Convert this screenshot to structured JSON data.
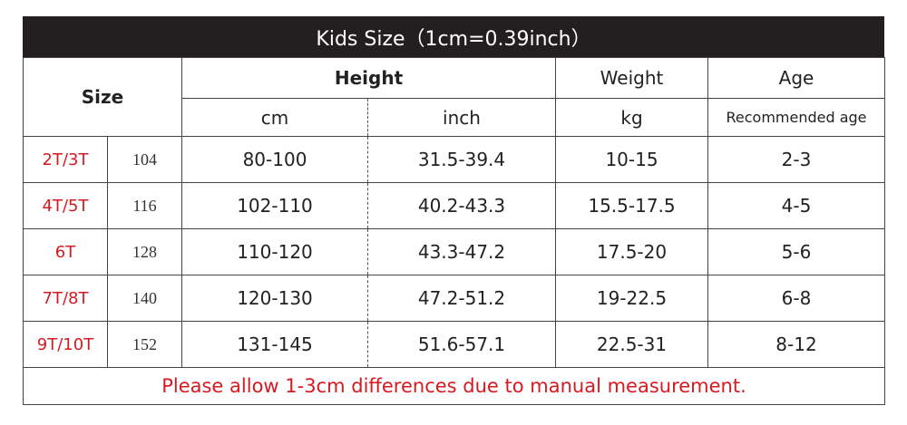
{
  "header": {
    "title": "Kids  Size（1cm=0.39inch）"
  },
  "table": {
    "columns": {
      "size": "Size",
      "height": "Height",
      "weight": "Weight",
      "age": "Age",
      "cm": "cm",
      "inch": "inch",
      "kg": "kg",
      "recommended": "Recommended age"
    },
    "rows": [
      [
        "2T/3T",
        "104",
        "80-100",
        "31.5-39.4",
        "10-15",
        "2-3"
      ],
      [
        "4T/5T",
        "116",
        "102-110",
        "40.2-43.3",
        "15.5-17.5",
        "4-5"
      ],
      [
        "6T",
        "128",
        "110-120",
        "43.3-47.2",
        "17.5-20",
        "5-6"
      ],
      [
        "7T/8T",
        "140",
        "120-130",
        "47.2-51.2",
        "19-22.5",
        "6-8"
      ],
      [
        "9T/10T",
        "152",
        "131-145",
        "51.6-57.1",
        "22.5-31",
        "8-12"
      ]
    ]
  },
  "footer": {
    "note": "Please allow 1-3cm differences due to manual measurement."
  }
}
